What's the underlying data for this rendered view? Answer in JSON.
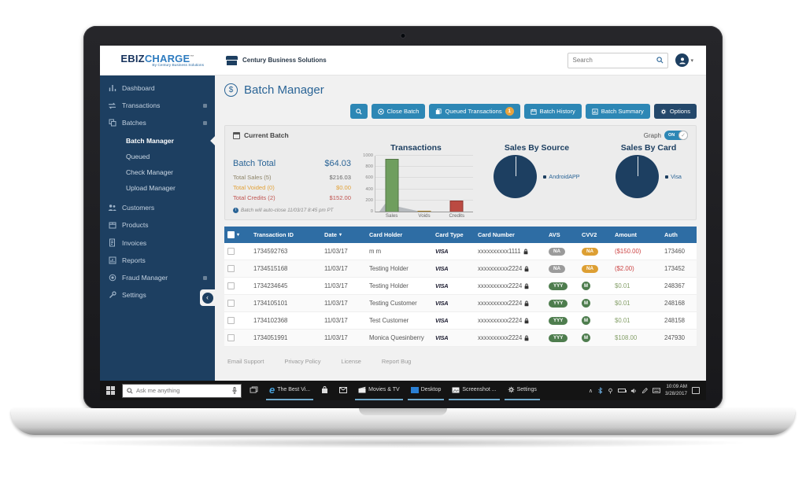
{
  "brand": {
    "name_primary": "EBIZ",
    "name_secondary": "CHARGE",
    "tm": "™",
    "tagline": "By Century Business Solutions"
  },
  "top_bar": {
    "company": "Century Business Solutions",
    "search_placeholder": "Search"
  },
  "sidebar": {
    "items": [
      {
        "label": "Dashboard"
      },
      {
        "label": "Transactions",
        "expandable": true
      },
      {
        "label": "Batches",
        "expandable": true
      },
      {
        "label": "Customers"
      },
      {
        "label": "Products"
      },
      {
        "label": "Invoices"
      },
      {
        "label": "Reports"
      },
      {
        "label": "Fraud Manager",
        "expandable": true
      },
      {
        "label": "Settings",
        "expandable": true
      }
    ],
    "batches_children": [
      {
        "label": "Batch Manager",
        "active": true
      },
      {
        "label": "Queued"
      },
      {
        "label": "Check Manager"
      },
      {
        "label": "Upload Manager"
      }
    ]
  },
  "page": {
    "title": "Batch Manager",
    "toolbar": {
      "close_batch": "Close Batch",
      "queued": "Queued Transactions",
      "queued_badge": "1",
      "history": "Batch History",
      "summary": "Batch Summary",
      "options": "Options"
    }
  },
  "batch_panel": {
    "title": "Current Batch",
    "graph_label": "Graph",
    "graph_state": "ON",
    "stats": [
      {
        "label": "Batch Total",
        "value": "$64.03"
      },
      {
        "label": "Total Sales (5)",
        "value": "$216.03"
      },
      {
        "label": "Total Voided (0)",
        "value": "$0.00"
      },
      {
        "label": "Total Credits (2)",
        "value": "$152.00"
      }
    ],
    "note": "Batch will auto-close 11/03/17 8:45 pm PT"
  },
  "chart_data": [
    {
      "type": "bar",
      "title": "Transactions",
      "categories": [
        "Sales",
        "Voids",
        "Credits"
      ],
      "values": [
        950,
        20,
        200
      ],
      "bar_colors": [
        "#6f9e5e",
        "#d9a62e",
        "#bb4a42"
      ],
      "ylim": [
        0,
        1000
      ],
      "yticks": [
        0,
        200,
        400,
        600,
        800,
        1000
      ],
      "grid": true,
      "legend_position": "none"
    },
    {
      "type": "pie",
      "title": "Sales By Source",
      "slices": [
        {
          "label": "AndroidAPP",
          "value": 100
        }
      ],
      "color": "#1d3f61",
      "legend_position": "right"
    },
    {
      "type": "pie",
      "title": "Sales By Card",
      "slices": [
        {
          "label": "Visa",
          "value": 100
        }
      ],
      "color": "#1d3f61",
      "legend_position": "right"
    }
  ],
  "table": {
    "columns": [
      "Transaction ID",
      "Date",
      "Card Holder",
      "Card Type",
      "Card Number",
      "AVS",
      "CVV2",
      "Amount",
      "Auth"
    ],
    "rows": [
      {
        "id": "1734592763",
        "date": "11/03/17",
        "holder": "m m",
        "type": "VISA",
        "number": "xxxxxxxxxx1111",
        "avs": "NA",
        "avs_class": "gray",
        "cvv2": "NA",
        "cvv2_class": "amber",
        "amount": "($150.00)",
        "amount_class": "neg",
        "auth": "173460"
      },
      {
        "id": "1734515168",
        "date": "11/03/17",
        "holder": "Testing Holder",
        "type": "VISA",
        "number": "xxxxxxxxxx2224",
        "avs": "NA",
        "avs_class": "gray",
        "cvv2": "NA",
        "cvv2_class": "amber",
        "amount": "($2.00)",
        "amount_class": "neg",
        "auth": "173452"
      },
      {
        "id": "1734234645",
        "date": "11/03/17",
        "holder": "Testing Holder",
        "type": "VISA",
        "number": "xxxxxxxxxx2224",
        "avs": "YYY",
        "avs_class": "green",
        "cvv2": "M",
        "cvv2_class": "dot",
        "amount": "$0.01",
        "amount_class": "pos",
        "auth": "248367"
      },
      {
        "id": "1734105101",
        "date": "11/03/17",
        "holder": "Testing Customer",
        "type": "VISA",
        "number": "xxxxxxxxxx2224",
        "avs": "YYY",
        "avs_class": "green",
        "cvv2": "M",
        "cvv2_class": "dot",
        "amount": "$0.01",
        "amount_class": "pos",
        "auth": "248168"
      },
      {
        "id": "1734102368",
        "date": "11/03/17",
        "holder": "Test Customer",
        "type": "VISA",
        "number": "xxxxxxxxxx2224",
        "avs": "YYY",
        "avs_class": "green",
        "cvv2": "M",
        "cvv2_class": "dot",
        "amount": "$0.01",
        "amount_class": "pos",
        "auth": "248158"
      },
      {
        "id": "1734051991",
        "date": "11/03/17",
        "holder": "Monica Quesinberry",
        "type": "VISA",
        "number": "xxxxxxxxxx2224",
        "avs": "YYY",
        "avs_class": "green",
        "cvv2": "M",
        "cvv2_class": "dot",
        "amount": "$108.00",
        "amount_class": "pos",
        "auth": "247930"
      }
    ]
  },
  "footer": {
    "links": [
      "Email Support",
      "Privacy Policy",
      "License",
      "Report Bug"
    ]
  },
  "taskbar": {
    "search_placeholder": "Ask me anything",
    "apps": [
      "The Best Vi...",
      "Movies & TV",
      "Desktop",
      "Screenshot ...",
      "Settings"
    ],
    "time": "10:09 AM",
    "date": "3/28/2017"
  }
}
